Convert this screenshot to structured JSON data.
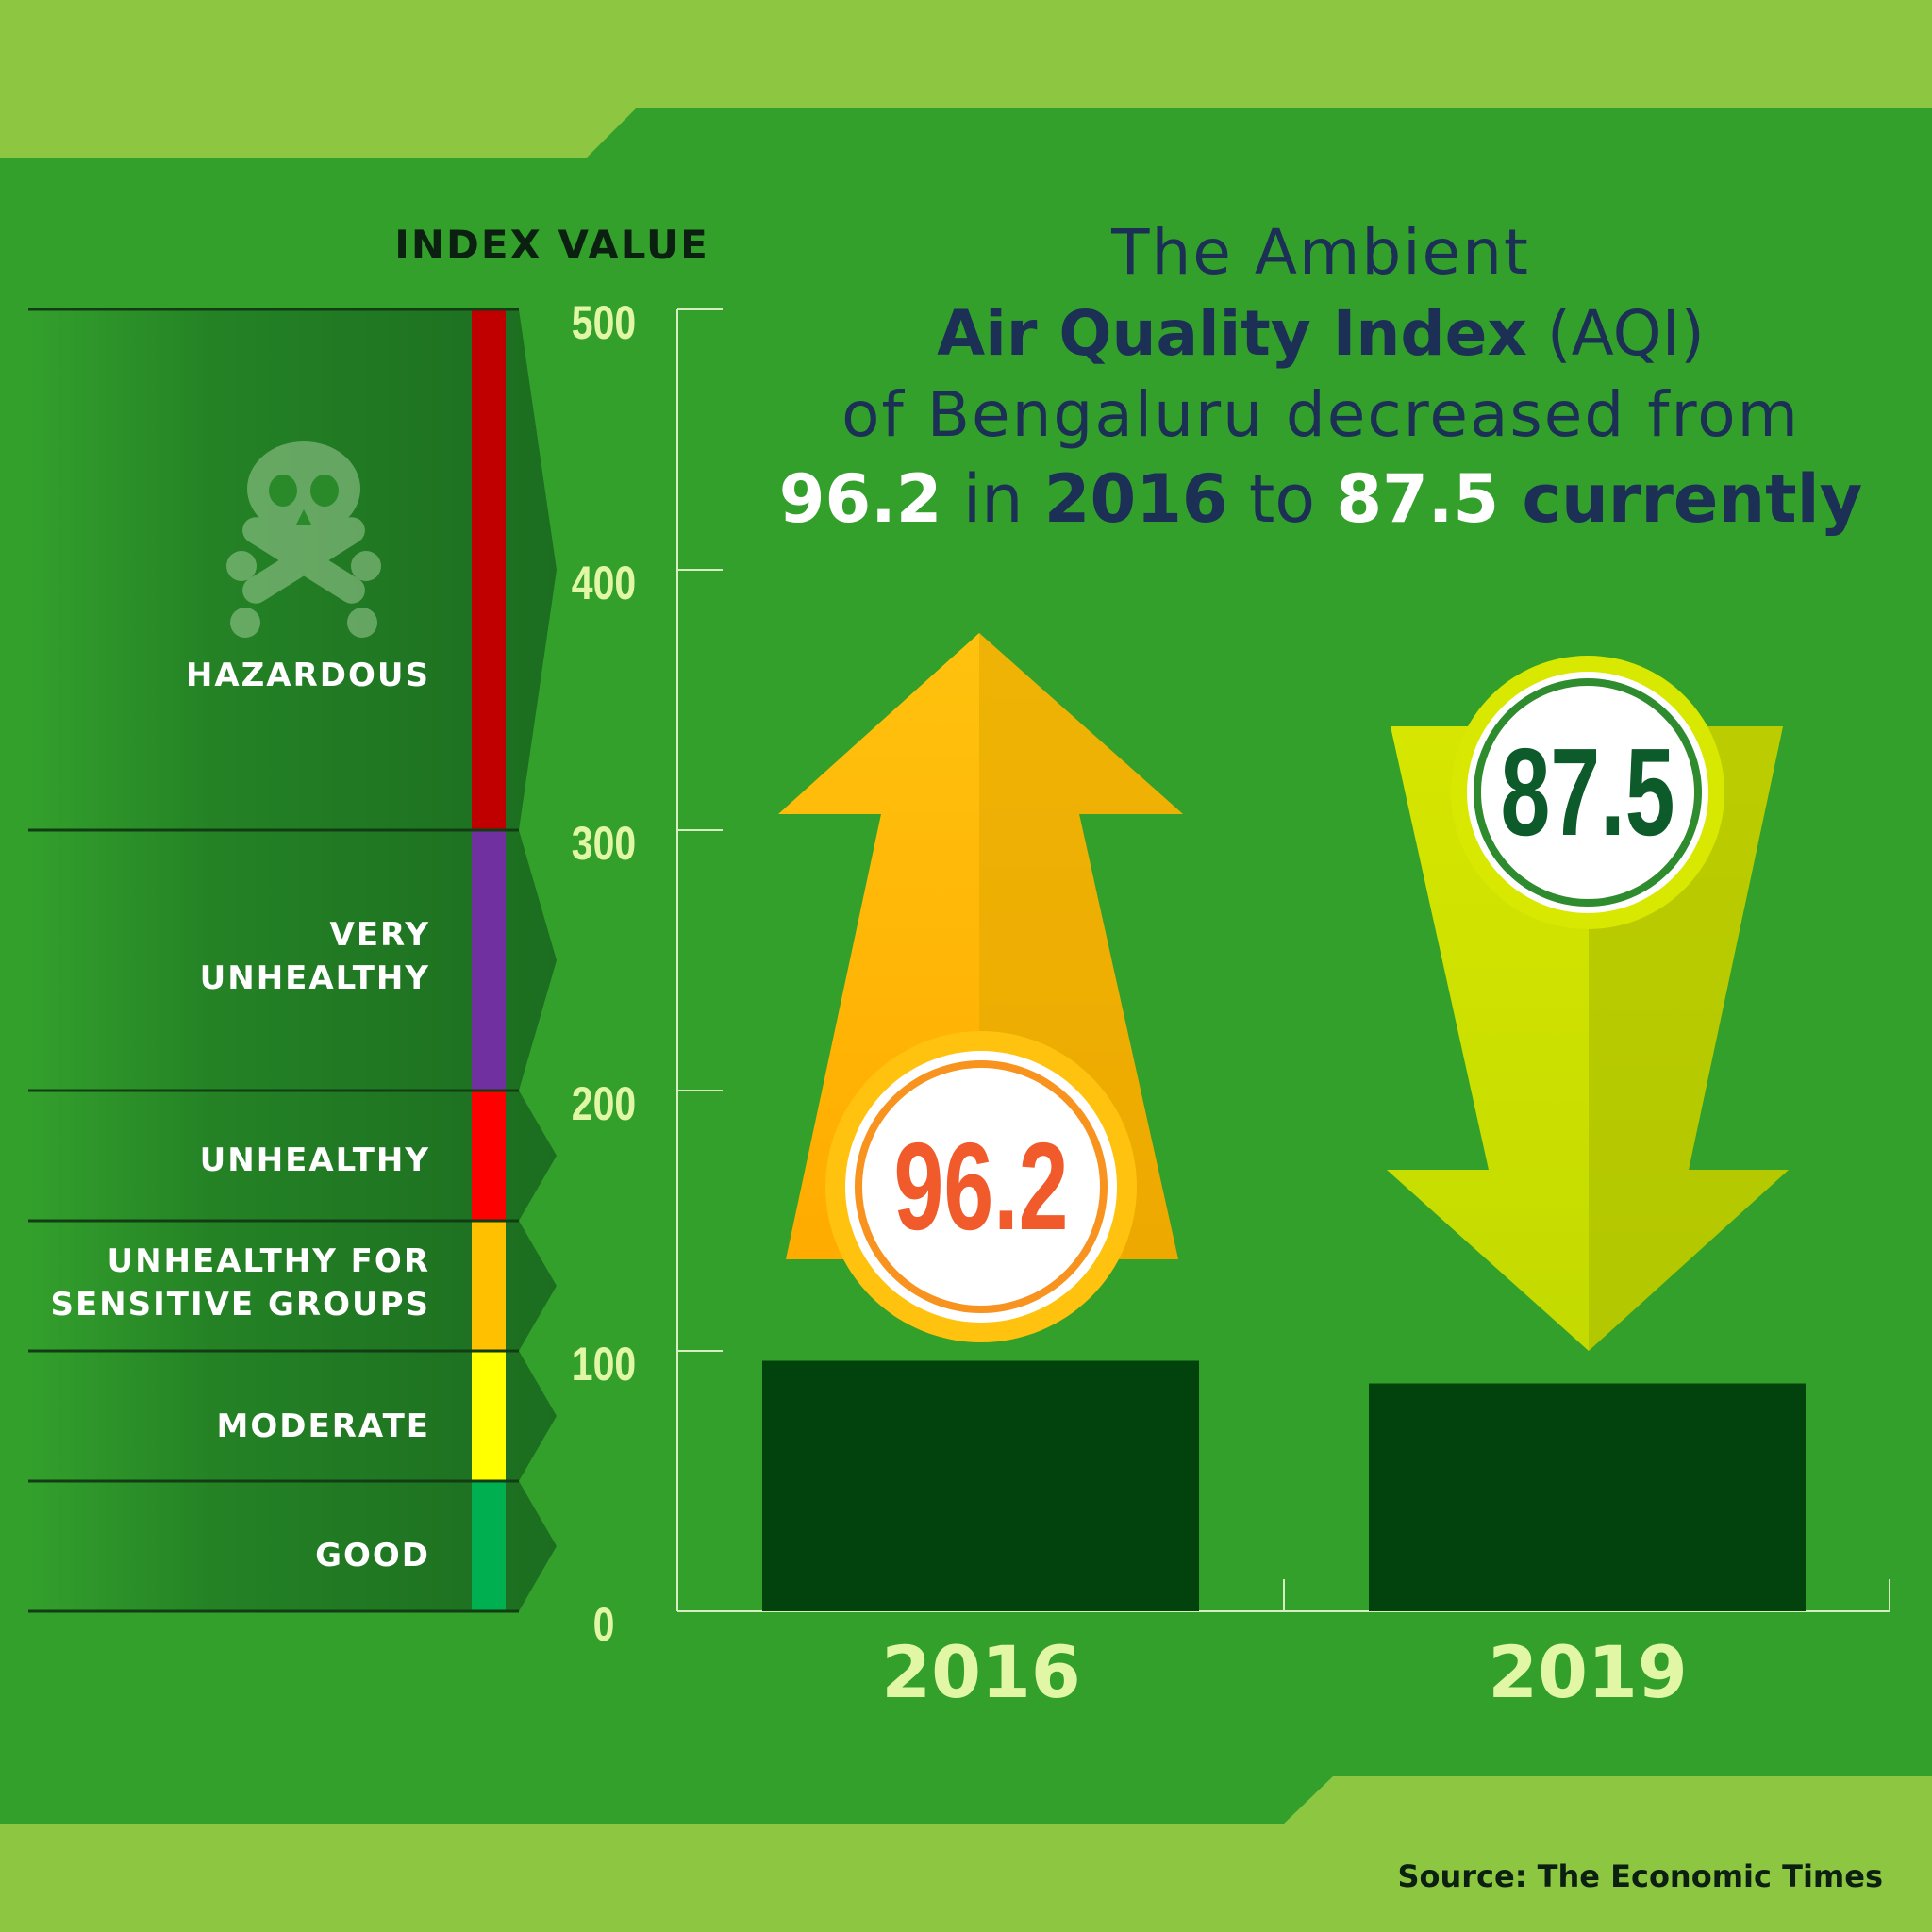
{
  "title": {
    "line1": "The Ambient",
    "line2_bold": "Air Quality Index",
    "line2_rest": " (AQI)",
    "line3": "of Bengaluru decreased from",
    "line4_a": "96.2",
    "line4_b": " in ",
    "line4_c": "2016",
    "line4_d": " to ",
    "line4_e": "87.5",
    "line4_f": " currently"
  },
  "index_heading": "INDEX VALUE",
  "bands": [
    {
      "label": "HAZARDOUS",
      "from": 300,
      "to": 500,
      "color": "#c00000",
      "icon": "skull-crossbones-icon"
    },
    {
      "label": "VERY\nUNHEALTHY",
      "from": 200,
      "to": 300,
      "color": "#7030a0"
    },
    {
      "label": "UNHEALTHY",
      "from": 150,
      "to": 200,
      "color": "#ff0000"
    },
    {
      "label": "UNHEALTHY FOR\nSENSITIVE GROUPS",
      "from": 100,
      "to": 150,
      "color": "#ffc000"
    },
    {
      "label": "MODERATE",
      "from": 50,
      "to": 100,
      "color": "#ffff00"
    },
    {
      "label": "GOOD",
      "from": 0,
      "to": 50,
      "color": "#00b050"
    }
  ],
  "chart_data": {
    "type": "bar",
    "categories": [
      "2016",
      "2019"
    ],
    "values": [
      96.2,
      87.5
    ],
    "ylim": [
      0,
      500
    ],
    "yticks": [
      "0",
      "100",
      "200",
      "300",
      "400",
      "500"
    ],
    "value_labels": [
      "96.2",
      "87.5"
    ],
    "bar_color": "#02430d",
    "arrow_colors": [
      "#fdb913",
      "#c8dc00"
    ],
    "label_colors": [
      "#f15a2a",
      "#0d5a2a"
    ]
  },
  "source": "Source: The Economic Times",
  "colors": {
    "background": "#33a02c",
    "frame": "#8dc641",
    "title_dark": "#1c2f55",
    "axis_labels": "#e2f7a6"
  }
}
